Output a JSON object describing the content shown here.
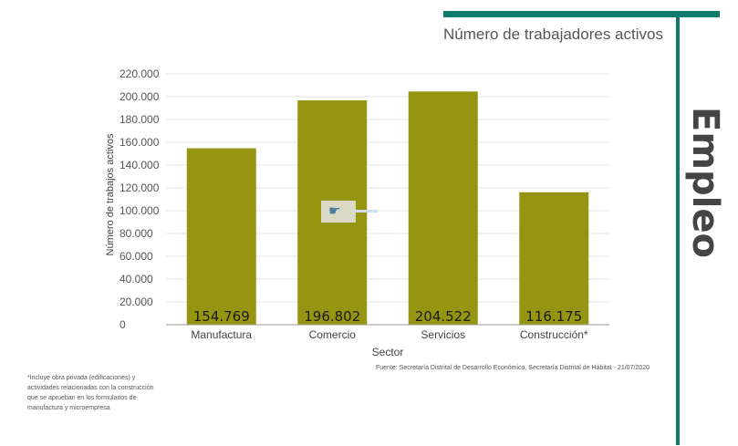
{
  "header": {
    "title": "Número de trabajadores activos",
    "side_label": "Empleo"
  },
  "colors": {
    "accent": "#0d7a6c",
    "bar": "#969512",
    "bar_label_text": "#1a1a1a"
  },
  "cursor_icon": "hand-pointer-icon",
  "chart_data": {
    "type": "bar",
    "categories": [
      "Manufactura",
      "Comercio",
      "Servicios",
      "Construcción*"
    ],
    "values": [
      154769,
      196802,
      204522,
      116175
    ],
    "value_labels": [
      "154.769",
      "196.802",
      "204.522",
      "116.175"
    ],
    "title": "Número de trabajadores activos",
    "xlabel": "Sector",
    "ylabel": "Número de trabajos activos",
    "ylim": [
      0,
      220000
    ],
    "yticks": [
      0,
      20000,
      40000,
      60000,
      80000,
      100000,
      120000,
      140000,
      160000,
      180000,
      200000,
      220000
    ],
    "ytick_labels": [
      "0",
      "20.000",
      "40.000",
      "60.000",
      "80.000",
      "100.000",
      "120.000",
      "140.000",
      "160.000",
      "180.000",
      "200.000",
      "220.000"
    ],
    "grid": true,
    "legend": "none"
  },
  "footer": {
    "source": "Fuente: Secretaría Distrital de Desarrollo Económico, Secretaría Distrital de Hábitat - 21/07/2020",
    "footnote": "*Incluye obra privada (edificaciones) y actividades relacionadas con la construcción que se aprueban en los formularios de manufactura y microempresa"
  }
}
